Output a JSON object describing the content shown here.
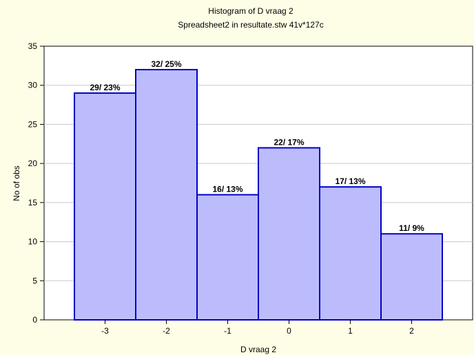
{
  "chart_data": {
    "type": "bar",
    "title": "Histogram of D vraag 2",
    "subtitle": "Spreadsheet2 in resultate.stw 41v*127c",
    "xlabel": "D vraag 2",
    "ylabel": "No of obs",
    "categories": [
      "-3",
      "-2",
      "-1",
      "0",
      "1",
      "2"
    ],
    "values": [
      29,
      32,
      16,
      22,
      17,
      11
    ],
    "data_labels": [
      "29/ 23%",
      "32/ 25%",
      "16/ 13%",
      "22/ 17%",
      "17/ 13%",
      "11/ 9%"
    ],
    "ylim": [
      0,
      35
    ],
    "yticks": [
      0,
      5,
      10,
      15,
      20,
      25,
      30,
      35
    ],
    "grid": true,
    "bar_color": "#bcbcfc",
    "bar_edge_color": "#0000c8",
    "background_color": "#fefee6"
  }
}
